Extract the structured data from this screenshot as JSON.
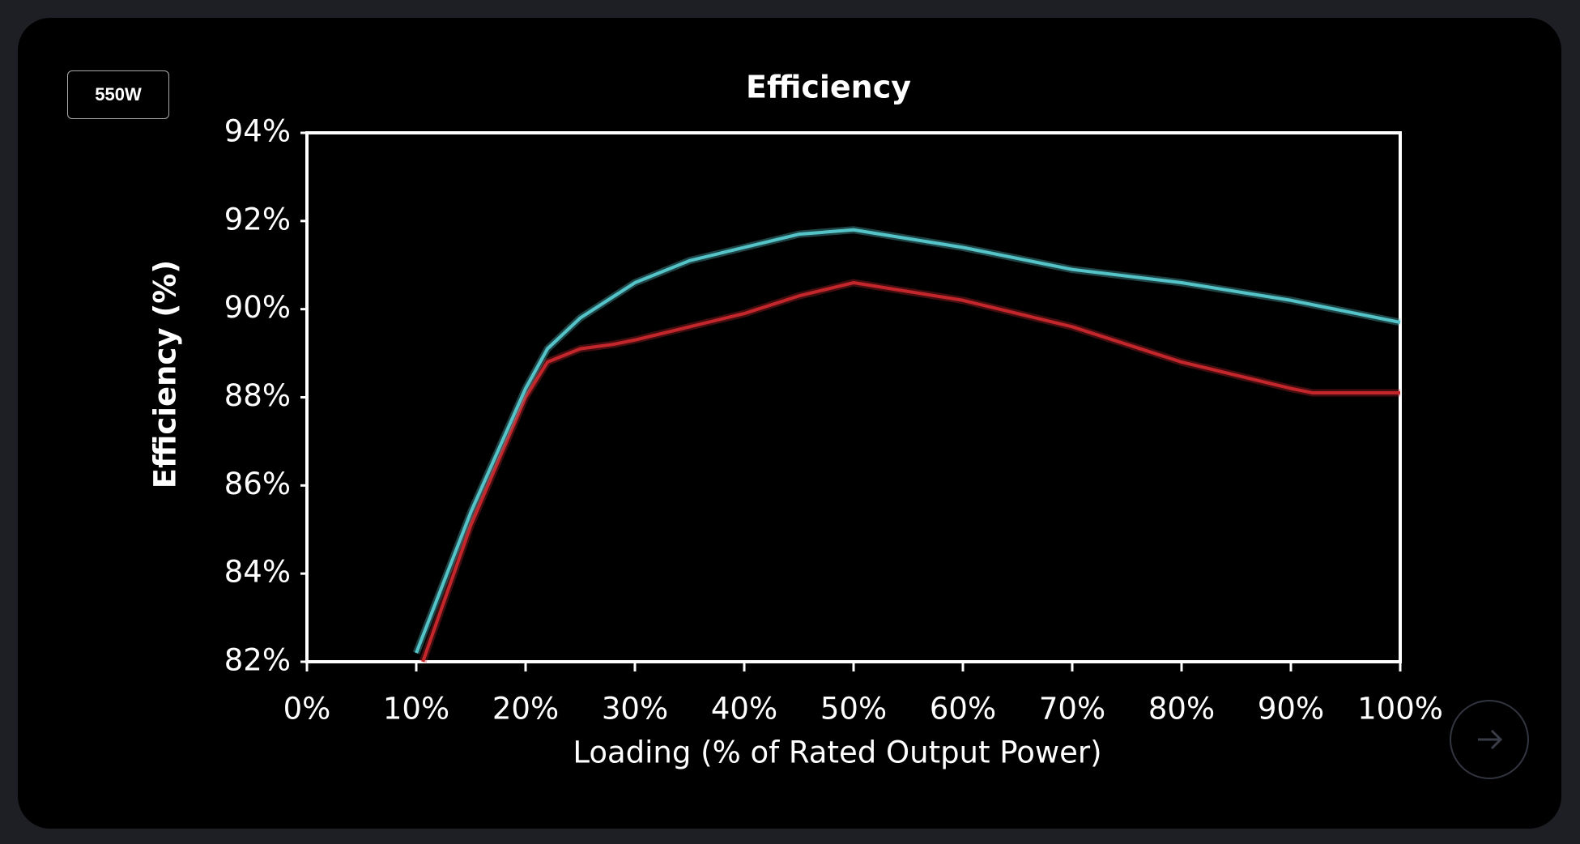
{
  "toolbar": {
    "button": "550W"
  },
  "chart_data": {
    "type": "line",
    "title": "Efficiency",
    "x_label": "Loading (% of Rated Output Power)",
    "y_label": "Efficiency (%)",
    "xlim": [
      0,
      100
    ],
    "ylim": [
      82,
      94
    ],
    "xticks": [
      {
        "value": 0,
        "label": "0%"
      },
      {
        "value": 10,
        "label": "10%"
      },
      {
        "value": 20,
        "label": "20%"
      },
      {
        "value": 30,
        "label": "30%"
      },
      {
        "value": 40,
        "label": "40%"
      },
      {
        "value": 50,
        "label": "50%"
      },
      {
        "value": 60,
        "label": "60%"
      },
      {
        "value": 70,
        "label": "70%"
      },
      {
        "value": 80,
        "label": "80%"
      },
      {
        "value": 90,
        "label": "90%"
      },
      {
        "value": 100,
        "label": "100%"
      }
    ],
    "yticks": [
      {
        "value": 82,
        "label": "82%"
      },
      {
        "value": 84,
        "label": "84%"
      },
      {
        "value": 86,
        "label": "86%"
      },
      {
        "value": 88,
        "label": "88%"
      },
      {
        "value": 90,
        "label": "90%"
      },
      {
        "value": 92,
        "label": "92%"
      },
      {
        "value": 94,
        "label": "94%"
      }
    ],
    "series": [
      {
        "color": "#55c4c9",
        "x": [
          10,
          15,
          20,
          22,
          25,
          30,
          35,
          40,
          45,
          50,
          55,
          60,
          70,
          80,
          90,
          100
        ],
        "values": [
          82.2,
          85.4,
          88.2,
          89.1,
          89.8,
          90.6,
          91.1,
          91.4,
          91.7,
          91.8,
          91.6,
          91.4,
          90.9,
          90.6,
          90.2,
          89.7
        ]
      },
      {
        "color": "#c3262b",
        "x": [
          10.6,
          15,
          20,
          22,
          25,
          28,
          30,
          35,
          40,
          45,
          50,
          60,
          70,
          80,
          90,
          92,
          100
        ],
        "values": [
          82,
          85.1,
          88,
          88.8,
          89.1,
          89.2,
          89.3,
          89.6,
          89.9,
          90.3,
          90.6,
          90.2,
          89.6,
          88.8,
          88.2,
          88.1,
          88.1
        ]
      }
    ]
  }
}
